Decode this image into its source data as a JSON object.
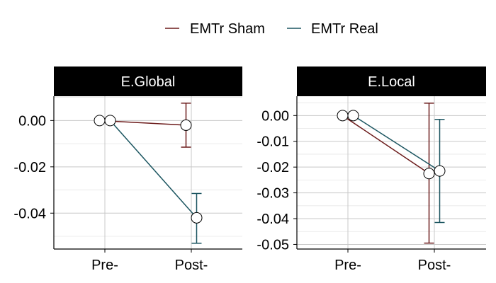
{
  "legend": {
    "placement": "top-center",
    "entries": [
      {
        "label": "EMTr Sham",
        "color": "#6b1a1a"
      },
      {
        "label": "EMTr Real",
        "color": "#1b5560"
      }
    ]
  },
  "chart_data": [
    {
      "type": "line",
      "title": "E.Global",
      "xlabel": "",
      "ylabel": "",
      "categories": [
        "Pre-",
        "Post-"
      ],
      "ylim": [
        -0.0555,
        0.0105
      ],
      "yticks": [
        0.0,
        -0.02,
        -0.04
      ],
      "ytick_labels": [
        "0.00",
        "-0.02",
        "-0.04"
      ],
      "grid": true,
      "series": [
        {
          "name": "EMTr Sham",
          "values": [
            0.0,
            -0.002
          ],
          "error_low": [
            null,
            -0.0115
          ],
          "error_high": [
            null,
            0.0075
          ]
        },
        {
          "name": "EMTr Real",
          "values": [
            0.0,
            -0.042
          ],
          "error_low": [
            null,
            -0.053
          ],
          "error_high": [
            null,
            -0.0315
          ]
        }
      ]
    },
    {
      "type": "line",
      "title": "E.Local",
      "xlabel": "",
      "ylabel": "",
      "categories": [
        "Pre-",
        "Post-"
      ],
      "ylim": [
        -0.0518,
        0.0075
      ],
      "yticks": [
        0.0,
        -0.01,
        -0.02,
        -0.03,
        -0.04,
        -0.05
      ],
      "ytick_labels": [
        "0.00",
        "-0.01",
        "-0.02",
        "-0.03",
        "-0.04",
        "-0.05"
      ],
      "grid": true,
      "series": [
        {
          "name": "EMTr Sham",
          "values": [
            0.0,
            -0.0225
          ],
          "error_low": [
            null,
            -0.0495
          ],
          "error_high": [
            null,
            0.0048
          ]
        },
        {
          "name": "EMTr Real",
          "values": [
            0.0,
            -0.0215
          ],
          "error_low": [
            null,
            -0.0415
          ],
          "error_high": [
            null,
            -0.0015
          ]
        }
      ]
    }
  ]
}
